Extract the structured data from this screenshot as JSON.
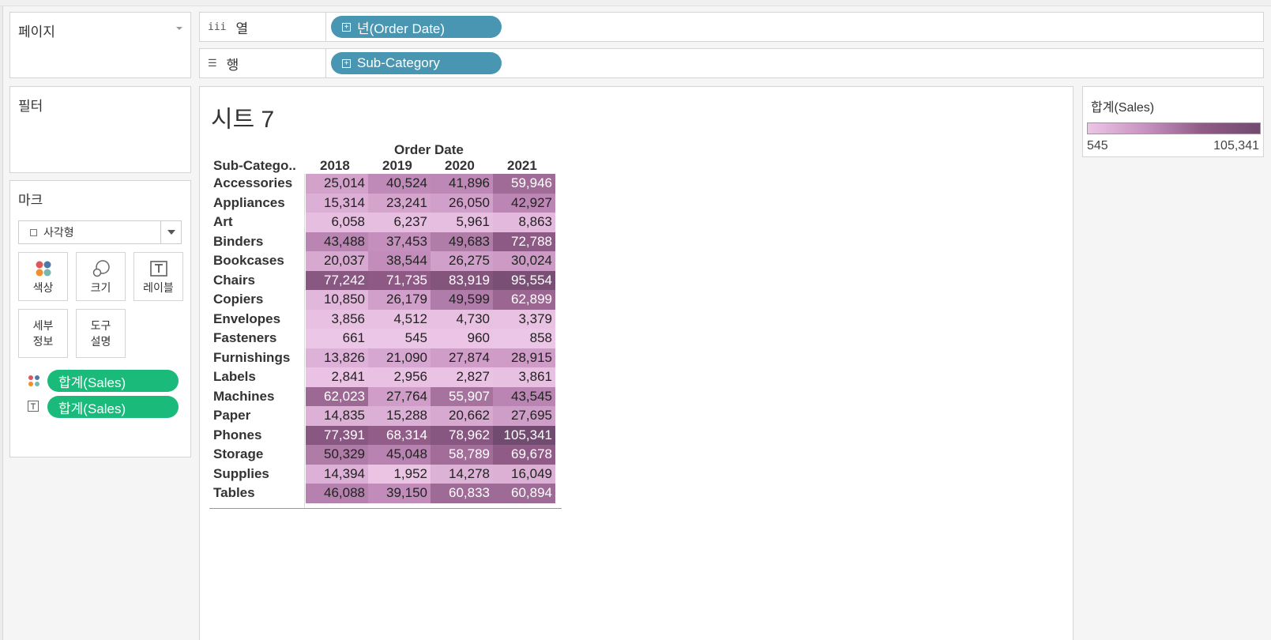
{
  "shelves": {
    "pages_label": "페이지",
    "columns_label": "열",
    "columns_pill": "년(Order Date)",
    "rows_label": "행",
    "rows_pill": "Sub-Category",
    "filters_label": "필터"
  },
  "marks": {
    "title": "마크",
    "mark_type": "사각형",
    "buttons": {
      "color": "색상",
      "size": "크기",
      "label": "레이블",
      "detail_line1": "세부",
      "detail_line2": "정보",
      "tooltip_line1": "도구",
      "tooltip_line2": "설명"
    },
    "pills": [
      "합계(Sales)",
      "합계(Sales)"
    ]
  },
  "sheet": {
    "title": "시트 7",
    "column_group_header": "Order Date",
    "row_header": "Sub-Catego.."
  },
  "legend": {
    "title": "합계(Sales)",
    "min": "545",
    "max": "105,341",
    "colors": [
      "#ecc6e6",
      "#c792c0",
      "#8f5b86",
      "#714b70"
    ]
  },
  "chart_data": {
    "type": "heatmap",
    "title": "시트 7",
    "xlabel": "Order Date",
    "ylabel": "Sub-Catego..",
    "columns": [
      "2018",
      "2019",
      "2020",
      "2021"
    ],
    "rows": [
      "Accessories",
      "Appliances",
      "Art",
      "Binders",
      "Bookcases",
      "Chairs",
      "Copiers",
      "Envelopes",
      "Fasteners",
      "Furnishings",
      "Labels",
      "Machines",
      "Paper",
      "Phones",
      "Storage",
      "Supplies",
      "Tables"
    ],
    "values": [
      [
        25014,
        40524,
        41896,
        59946
      ],
      [
        15314,
        23241,
        26050,
        42927
      ],
      [
        6058,
        6237,
        5961,
        8863
      ],
      [
        43488,
        37453,
        49683,
        72788
      ],
      [
        20037,
        38544,
        26275,
        30024
      ],
      [
        77242,
        71735,
        83919,
        95554
      ],
      [
        10850,
        26179,
        49599,
        62899
      ],
      [
        3856,
        4512,
        4730,
        3379
      ],
      [
        661,
        545,
        960,
        858
      ],
      [
        13826,
        21090,
        27874,
        28915
      ],
      [
        2841,
        2956,
        2827,
        3861
      ],
      [
        62023,
        27764,
        55907,
        43545
      ],
      [
        14835,
        15288,
        20662,
        27695
      ],
      [
        77391,
        68314,
        78962,
        105341
      ],
      [
        50329,
        45048,
        58789,
        69678
      ],
      [
        14394,
        1952,
        14278,
        16049
      ],
      [
        46088,
        39150,
        60833,
        60894
      ]
    ],
    "labels": [
      [
        "25,014",
        "40,524",
        "41,896",
        "59,946"
      ],
      [
        "15,314",
        "23,241",
        "26,050",
        "42,927"
      ],
      [
        "6,058",
        "6,237",
        "5,961",
        "8,863"
      ],
      [
        "43,488",
        "37,453",
        "49,683",
        "72,788"
      ],
      [
        "20,037",
        "38,544",
        "26,275",
        "30,024"
      ],
      [
        "77,242",
        "71,735",
        "83,919",
        "95,554"
      ],
      [
        "10,850",
        "26,179",
        "49,599",
        "62,899"
      ],
      [
        "3,856",
        "4,512",
        "4,730",
        "3,379"
      ],
      [
        "661",
        "545",
        "960",
        "858"
      ],
      [
        "13,826",
        "21,090",
        "27,874",
        "28,915"
      ],
      [
        "2,841",
        "2,956",
        "2,827",
        "3,861"
      ],
      [
        "62,023",
        "27,764",
        "55,907",
        "43,545"
      ],
      [
        "14,835",
        "15,288",
        "20,662",
        "27,695"
      ],
      [
        "77,391",
        "68,314",
        "78,962",
        "105,341"
      ],
      [
        "50,329",
        "45,048",
        "58,789",
        "69,678"
      ],
      [
        "14,394",
        "1,952",
        "14,278",
        "16,049"
      ],
      [
        "46,088",
        "39,150",
        "60,833",
        "60,894"
      ]
    ],
    "color_range": [
      545,
      105341
    ]
  }
}
